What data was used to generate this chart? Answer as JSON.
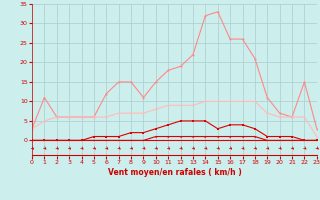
{
  "x": [
    0,
    1,
    2,
    3,
    4,
    5,
    6,
    7,
    8,
    9,
    10,
    11,
    12,
    13,
    14,
    15,
    16,
    17,
    18,
    19,
    20,
    21,
    22,
    23
  ],
  "line_rafales": [
    3,
    11,
    6,
    6,
    6,
    6,
    12,
    15,
    15,
    11,
    15,
    18,
    19,
    22,
    32,
    33,
    26,
    26,
    21,
    11,
    7,
    6,
    15,
    3
  ],
  "line_moyen": [
    3,
    5,
    6,
    6,
    6,
    6,
    6,
    7,
    7,
    7,
    8,
    9,
    9,
    9,
    10,
    10,
    10,
    10,
    10,
    7,
    6,
    6,
    6,
    1
  ],
  "line_dark1": [
    0,
    0,
    0,
    0,
    0,
    1,
    1,
    1,
    2,
    2,
    3,
    4,
    5,
    5,
    5,
    3,
    4,
    4,
    3,
    1,
    1,
    1,
    0,
    0
  ],
  "line_dark2": [
    0,
    0,
    0,
    0,
    0,
    0,
    0,
    0,
    0,
    0,
    1,
    1,
    1,
    1,
    1,
    1,
    1,
    1,
    1,
    0,
    0,
    0,
    0,
    0
  ],
  "bg_color": "#cceeed",
  "grid_color": "#aacccc",
  "line_rafales_color": "#ff8888",
  "line_moyen_color": "#ffbbbb",
  "line_dark_color": "#dd0000",
  "xlabel": "Vent moyen/en rafales ( km/h )",
  "ylim": [
    -4,
    35
  ],
  "xlim": [
    0,
    23
  ],
  "yticks": [
    0,
    5,
    10,
    15,
    20,
    25,
    30,
    35
  ],
  "xticks": [
    0,
    1,
    2,
    3,
    4,
    5,
    6,
    7,
    8,
    9,
    10,
    11,
    12,
    13,
    14,
    15,
    16,
    17,
    18,
    19,
    20,
    21,
    22,
    23
  ]
}
